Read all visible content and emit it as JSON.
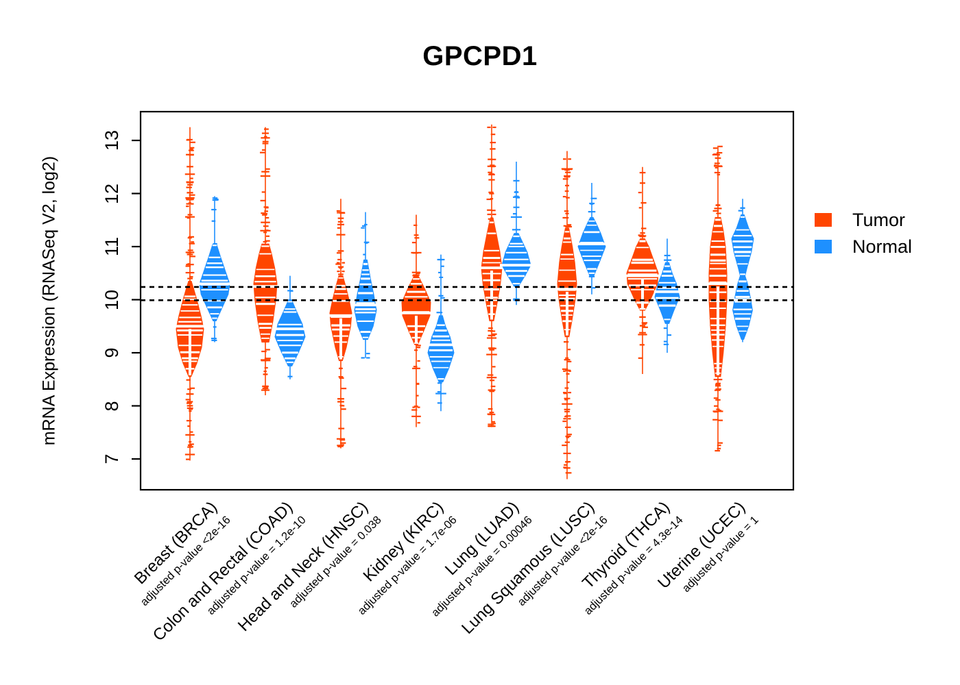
{
  "title": "GPCPD1",
  "legend": {
    "items": [
      {
        "label": "Tumor",
        "color": "#FF4500"
      },
      {
        "label": "Normal",
        "color": "#1E90FF"
      }
    ]
  },
  "chart_data": {
    "type": "violin",
    "title": "GPCPD1",
    "ylabel": "mRNA Expression (RNASeq V2, log2)",
    "ylim": [
      6.5,
      13.45
    ],
    "yticks": [
      7,
      8,
      9,
      10,
      11,
      12,
      13
    ],
    "grid": false,
    "legend_position": "right",
    "guide_lines": [
      10.24,
      9.99
    ],
    "guide_line_style": "black dotted horizontal",
    "series_colors": {
      "tumor": "#FF4500",
      "normal": "#1E90FF"
    },
    "groups": [
      {
        "label": "Breast (BRCA)",
        "pvalue": "adjusted p-value <2e-16",
        "tumor": {
          "median": 9.5,
          "body": [
            8.55,
            10.35
          ],
          "range": [
            6.97,
            13.25
          ],
          "hw": 20,
          "hollow": true,
          "td": 1.1,
          "profile": [
            [
              8.55,
              0.08
            ],
            [
              8.8,
              0.5
            ],
            [
              9.1,
              0.85
            ],
            [
              9.45,
              1.0
            ],
            [
              9.7,
              0.8
            ],
            [
              10.0,
              0.5
            ],
            [
              10.2,
              0.28
            ],
            [
              10.35,
              0.1
            ]
          ]
        },
        "normal": {
          "median": 10.3,
          "body": [
            9.6,
            11.05
          ],
          "range": [
            9.2,
            11.95
          ],
          "hw": 22,
          "hollow": false,
          "td": 0.5,
          "profile": [
            [
              9.6,
              0.1
            ],
            [
              9.85,
              0.5
            ],
            [
              10.1,
              0.9
            ],
            [
              10.3,
              1.0
            ],
            [
              10.55,
              0.7
            ],
            [
              10.8,
              0.4
            ],
            [
              11.05,
              0.12
            ]
          ]
        }
      },
      {
        "label": "Colon and Rectal (COAD)",
        "pvalue": "adjusted p-value = 1.2e-10",
        "tumor": {
          "median": 10.25,
          "body": [
            9.2,
            11.05
          ],
          "range": [
            8.2,
            13.25
          ],
          "hw": 17,
          "hollow": false,
          "td": 1.0,
          "profile": [
            [
              9.2,
              0.3
            ],
            [
              9.6,
              0.65
            ],
            [
              10.0,
              0.9
            ],
            [
              10.3,
              1.0
            ],
            [
              10.6,
              0.8
            ],
            [
              10.85,
              0.55
            ],
            [
              11.05,
              0.3
            ]
          ]
        },
        "normal": {
          "median": 9.45,
          "body": [
            8.75,
            10.0
          ],
          "range": [
            8.5,
            10.45
          ],
          "hw": 22,
          "hollow": false,
          "td": 0.4,
          "profile": [
            [
              8.75,
              0.12
            ],
            [
              9.0,
              0.55
            ],
            [
              9.3,
              1.0
            ],
            [
              9.55,
              0.8
            ],
            [
              9.8,
              0.4
            ],
            [
              10.0,
              0.1
            ]
          ]
        }
      },
      {
        "label": "Head and Neck (HNSC)",
        "pvalue": "adjusted p-value = 0.038",
        "tumor": {
          "median": 9.7,
          "body": [
            8.85,
            10.45
          ],
          "range": [
            7.2,
            11.9
          ],
          "hw": 16,
          "hollow": true,
          "td": 0.9,
          "profile": [
            [
              8.85,
              0.15
            ],
            [
              9.1,
              0.5
            ],
            [
              9.5,
              0.9
            ],
            [
              9.75,
              1.0
            ],
            [
              10.0,
              0.75
            ],
            [
              10.25,
              0.45
            ],
            [
              10.45,
              0.18
            ]
          ]
        },
        "normal": {
          "median": 9.9,
          "body": [
            9.25,
            10.75
          ],
          "range": [
            8.9,
            11.65
          ],
          "hw": 16,
          "hollow": false,
          "td": 0.5,
          "profile": [
            [
              9.25,
              0.2
            ],
            [
              9.5,
              0.7
            ],
            [
              9.8,
              1.0
            ],
            [
              10.1,
              0.75
            ],
            [
              10.4,
              0.45
            ],
            [
              10.75,
              0.15
            ]
          ]
        }
      },
      {
        "label": "Kidney (KIRC)",
        "pvalue": "adjusted p-value = 1.7e-06",
        "tumor": {
          "median": 9.75,
          "body": [
            9.15,
            10.45
          ],
          "range": [
            7.6,
            11.6
          ],
          "hw": 21,
          "hollow": true,
          "td": 0.7,
          "profile": [
            [
              9.15,
              0.1
            ],
            [
              9.4,
              0.5
            ],
            [
              9.7,
              0.95
            ],
            [
              9.95,
              1.0
            ],
            [
              10.2,
              0.6
            ],
            [
              10.45,
              0.14
            ]
          ]
        },
        "normal": {
          "median": 9.15,
          "body": [
            8.45,
            9.7
          ],
          "range": [
            7.9,
            10.85
          ],
          "hw": 19,
          "hollow": false,
          "td": 0.5,
          "profile": [
            [
              8.45,
              0.15
            ],
            [
              8.7,
              0.6
            ],
            [
              9.0,
              1.0
            ],
            [
              9.3,
              0.7
            ],
            [
              9.5,
              0.35
            ],
            [
              9.7,
              0.12
            ]
          ]
        }
      },
      {
        "label": "Lung (LUAD)",
        "pvalue": "adjusted p-value = 0.00046",
        "tumor": {
          "median": 10.6,
          "body": [
            9.6,
            11.5
          ],
          "range": [
            7.6,
            13.3
          ],
          "hw": 15,
          "hollow": true,
          "td": 1.0,
          "profile": [
            [
              9.6,
              0.2
            ],
            [
              9.9,
              0.5
            ],
            [
              10.3,
              0.85
            ],
            [
              10.6,
              1.0
            ],
            [
              10.9,
              0.8
            ],
            [
              11.2,
              0.5
            ],
            [
              11.5,
              0.18
            ]
          ]
        },
        "normal": {
          "median": 10.65,
          "body": [
            10.25,
            11.25
          ],
          "range": [
            9.9,
            12.6
          ],
          "hw": 21,
          "hollow": false,
          "td": 0.6,
          "profile": [
            [
              10.25,
              0.15
            ],
            [
              10.45,
              0.6
            ],
            [
              10.65,
              1.0
            ],
            [
              10.9,
              0.75
            ],
            [
              11.1,
              0.4
            ],
            [
              11.25,
              0.14
            ]
          ]
        }
      },
      {
        "label": "Lung Squamous (LUSC)",
        "pvalue": "adjusted p-value <2e-16",
        "tumor": {
          "median": 10.2,
          "body": [
            9.3,
            11.35
          ],
          "range": [
            6.62,
            12.8
          ],
          "hw": 14,
          "hollow": true,
          "td": 1.0,
          "profile": [
            [
              9.3,
              0.2
            ],
            [
              9.6,
              0.5
            ],
            [
              10.0,
              0.85
            ],
            [
              10.3,
              1.0
            ],
            [
              10.7,
              0.8
            ],
            [
              11.0,
              0.55
            ],
            [
              11.35,
              0.18
            ]
          ]
        },
        "normal": {
          "median": 11.05,
          "body": [
            10.45,
            11.55
          ],
          "range": [
            10.1,
            12.2
          ],
          "hw": 20,
          "hollow": false,
          "td": 0.5,
          "profile": [
            [
              10.45,
              0.15
            ],
            [
              10.7,
              0.55
            ],
            [
              11.0,
              1.0
            ],
            [
              11.25,
              0.65
            ],
            [
              11.45,
              0.3
            ],
            [
              11.55,
              0.1
            ]
          ]
        }
      },
      {
        "label": "Thyroid (THCA)",
        "pvalue": "adjusted p-value = 4.3e-14",
        "tumor": {
          "median": 10.45,
          "body": [
            9.8,
            11.15
          ],
          "range": [
            8.6,
            12.5
          ],
          "hw": 23,
          "hollow": true,
          "td": 0.6,
          "profile": [
            [
              9.8,
              0.15
            ],
            [
              10.0,
              0.5
            ],
            [
              10.3,
              0.95
            ],
            [
              10.5,
              1.0
            ],
            [
              10.75,
              0.7
            ],
            [
              11.0,
              0.4
            ],
            [
              11.15,
              0.14
            ]
          ]
        },
        "normal": {
          "median": 10.15,
          "body": [
            9.55,
            10.7
          ],
          "range": [
            9.0,
            11.15
          ],
          "hw": 18,
          "hollow": false,
          "td": 0.5,
          "profile": [
            [
              9.55,
              0.15
            ],
            [
              9.8,
              0.55
            ],
            [
              10.05,
              1.0
            ],
            [
              10.3,
              0.75
            ],
            [
              10.5,
              0.4
            ],
            [
              10.7,
              0.14
            ]
          ]
        }
      },
      {
        "label": "Uterine (UCEC)",
        "pvalue": "adjusted p-value = 1",
        "tumor": {
          "median": 10.3,
          "body": [
            8.55,
            11.55
          ],
          "range": [
            7.15,
            12.9
          ],
          "hw": 13,
          "hollow": true,
          "td": 1.1,
          "profile": [
            [
              8.55,
              0.3
            ],
            [
              9.0,
              0.6
            ],
            [
              9.5,
              0.85
            ],
            [
              10.0,
              1.0
            ],
            [
              10.5,
              1.0
            ],
            [
              11.0,
              0.85
            ],
            [
              11.3,
              0.6
            ],
            [
              11.55,
              0.3
            ]
          ]
        },
        "normal": {
          "median": 10.0,
          "body": [
            9.25,
            11.6
          ],
          "range": [
            9.2,
            11.9
          ],
          "hw": 16,
          "hollow": false,
          "td": 0.4,
          "profile": [
            [
              9.25,
              0.1
            ],
            [
              9.5,
              0.55
            ],
            [
              9.8,
              0.9
            ],
            [
              10.05,
              0.7
            ],
            [
              10.3,
              0.45
            ],
            [
              10.45,
              0.22
            ],
            [
              10.6,
              0.4
            ],
            [
              10.9,
              0.8
            ],
            [
              11.15,
              1.0
            ],
            [
              11.35,
              0.55
            ],
            [
              11.6,
              0.14
            ]
          ]
        }
      }
    ]
  }
}
